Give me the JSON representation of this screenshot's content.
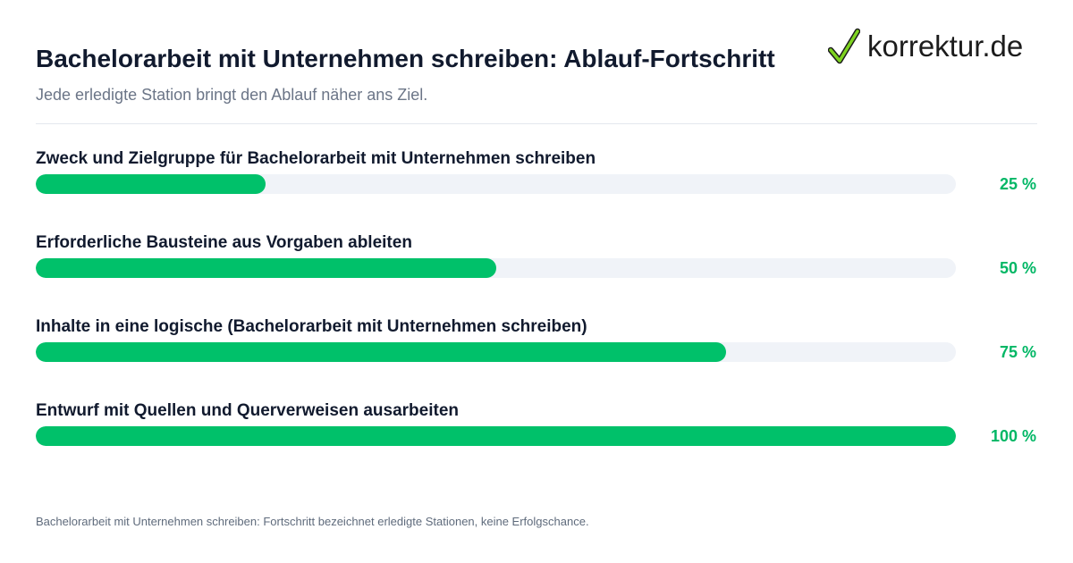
{
  "title": "Bachelorarbeit mit Unternehmen schreiben: Ablauf-Fortschritt",
  "subtitle": "Jede erledigte Station bringt den Ablauf näher ans Ziel.",
  "logo": {
    "text": "korrektur.de",
    "icon": "checkmark-icon",
    "check_color": "#7ed321"
  },
  "colors": {
    "accent": "#00c16a",
    "track": "#f0f3f8",
    "value_text": "#00b765"
  },
  "chart_data": {
    "type": "bar",
    "orientation": "horizontal",
    "unit": "%",
    "xlim": [
      0,
      100
    ],
    "grid": false,
    "categories": [
      "Zweck und Zielgruppe für Bachelorarbeit mit Unternehmen schreiben",
      "Erforderliche Bausteine aus Vorgaben ableiten",
      "Inhalte in eine logische (Bachelorarbeit mit Unternehmen schreiben)",
      "Entwurf mit Quellen und Querverweisen ausarbeiten"
    ],
    "values": [
      25,
      50,
      75,
      100
    ],
    "value_labels": [
      "25 %",
      "50 %",
      "75 %",
      "100 %"
    ]
  },
  "footnote": "Bachelorarbeit mit Unternehmen schreiben: Fortschritt bezeichnet erledigte Stationen, keine Erfolgschance."
}
